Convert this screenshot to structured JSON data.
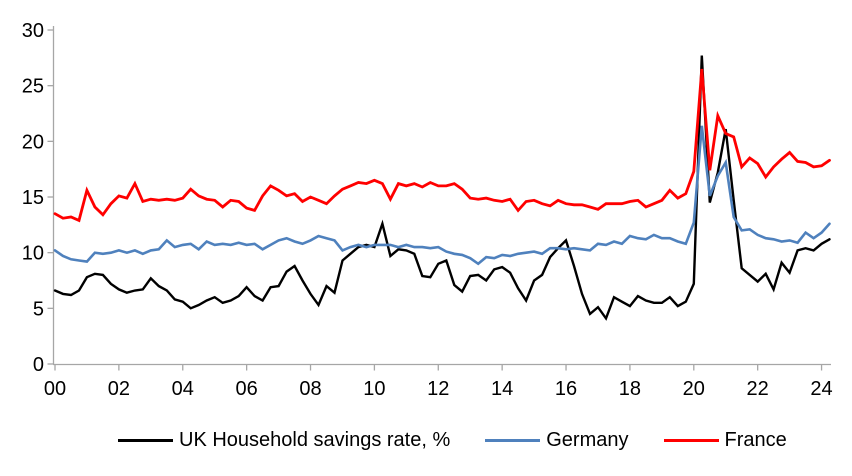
{
  "chart_data": {
    "type": "line",
    "title": "",
    "xlabel": "",
    "ylabel": "",
    "x_start": "2000Q1",
    "x_end": "2024Q2",
    "frequency": "quarterly",
    "x_tick_labels": [
      "00",
      "02",
      "04",
      "06",
      "08",
      "10",
      "12",
      "14",
      "16",
      "18",
      "20",
      "22",
      "24"
    ],
    "y_ticks": [
      0,
      5,
      10,
      15,
      20,
      25,
      30
    ],
    "ylim": [
      0,
      30
    ],
    "grid": false,
    "legend_position": "bottom",
    "axis_color": "#A6A6A6",
    "series": [
      {
        "name": "UK Household savings rate, %",
        "color": "#000000",
        "stroke_width": 2.4,
        "values": [
          6.6,
          6.3,
          6.2,
          6.6,
          7.8,
          8.1,
          8.0,
          7.2,
          6.7,
          6.4,
          6.6,
          6.7,
          7.7,
          7.0,
          6.6,
          5.8,
          5.6,
          5.0,
          5.3,
          5.7,
          6.0,
          5.5,
          5.7,
          6.1,
          6.9,
          6.1,
          5.7,
          6.9,
          7.0,
          8.3,
          8.8,
          7.5,
          6.3,
          5.3,
          7.0,
          6.4,
          9.3,
          9.9,
          10.5,
          10.7,
          10.5,
          12.6,
          9.7,
          10.3,
          10.2,
          9.9,
          7.9,
          7.8,
          9.0,
          9.3,
          7.1,
          6.5,
          7.9,
          8.0,
          7.5,
          8.5,
          8.7,
          8.2,
          6.8,
          5.7,
          7.5,
          8.0,
          9.6,
          10.4,
          11.1,
          8.8,
          6.3,
          4.5,
          5.1,
          4.1,
          6.0,
          5.6,
          5.2,
          6.1,
          5.7,
          5.5,
          5.5,
          6.0,
          5.2,
          5.6,
          7.2,
          27.7,
          14.5,
          17.2,
          21.1,
          14.7,
          8.6,
          8.0,
          7.4,
          8.1,
          6.7,
          9.1,
          8.2,
          10.2,
          10.4,
          10.2,
          10.8,
          11.2
        ]
      },
      {
        "name": "Germany",
        "color": "#4F81BD",
        "stroke_width": 2.6,
        "values": [
          10.2,
          9.7,
          9.4,
          9.3,
          9.2,
          10.0,
          9.9,
          10.0,
          10.2,
          10.0,
          10.2,
          9.9,
          10.2,
          10.3,
          11.1,
          10.5,
          10.7,
          10.8,
          10.3,
          11.0,
          10.7,
          10.8,
          10.7,
          10.9,
          10.7,
          10.8,
          10.3,
          10.7,
          11.1,
          11.3,
          11.0,
          10.8,
          11.1,
          11.5,
          11.3,
          11.1,
          10.2,
          10.5,
          10.7,
          10.5,
          10.7,
          10.7,
          10.7,
          10.5,
          10.7,
          10.5,
          10.5,
          10.4,
          10.5,
          10.1,
          9.9,
          9.8,
          9.5,
          9.0,
          9.6,
          9.5,
          9.8,
          9.7,
          9.9,
          10.0,
          10.1,
          9.9,
          10.4,
          10.4,
          10.3,
          10.4,
          10.3,
          10.2,
          10.8,
          10.7,
          11.0,
          10.8,
          11.5,
          11.3,
          11.2,
          11.6,
          11.3,
          11.3,
          11.0,
          10.8,
          12.7,
          21.4,
          15.1,
          16.9,
          18.1,
          13.2,
          12.0,
          12.1,
          11.6,
          11.3,
          11.2,
          11.0,
          11.1,
          10.9,
          11.8,
          11.3,
          11.8,
          12.6
        ]
      },
      {
        "name": "France",
        "color": "#FF0000",
        "stroke_width": 2.8,
        "values": [
          13.5,
          13.1,
          13.2,
          12.9,
          15.6,
          14.1,
          13.4,
          14.4,
          15.1,
          14.9,
          16.2,
          14.6,
          14.8,
          14.7,
          14.8,
          14.7,
          14.9,
          15.7,
          15.1,
          14.8,
          14.7,
          14.1,
          14.7,
          14.6,
          14.0,
          13.8,
          15.1,
          16.0,
          15.6,
          15.1,
          15.3,
          14.6,
          15.0,
          14.7,
          14.4,
          15.1,
          15.7,
          16.0,
          16.3,
          16.2,
          16.5,
          16.2,
          14.8,
          16.2,
          16.0,
          16.2,
          15.9,
          16.3,
          16.0,
          16.0,
          16.2,
          15.7,
          14.9,
          14.8,
          14.9,
          14.7,
          14.6,
          14.8,
          13.8,
          14.6,
          14.7,
          14.4,
          14.2,
          14.7,
          14.4,
          14.3,
          14.3,
          14.1,
          13.9,
          14.4,
          14.4,
          14.4,
          14.6,
          14.7,
          14.1,
          14.4,
          14.7,
          15.6,
          14.9,
          15.3,
          17.3,
          26.5,
          17.4,
          22.3,
          20.7,
          20.4,
          17.7,
          18.5,
          18.0,
          16.8,
          17.7,
          18.4,
          19.0,
          18.2,
          18.1,
          17.7,
          17.8,
          18.3
        ]
      }
    ]
  }
}
